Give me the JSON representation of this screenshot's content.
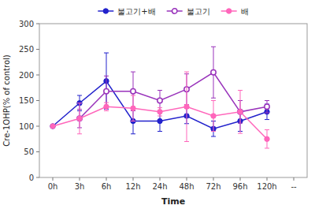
{
  "chart_data": {
    "type": "line",
    "xlabel": "Time",
    "ylabel": "Cre-1OHP(% of control)",
    "categories": [
      "0h",
      "3h",
      "6h",
      "12h",
      "24h",
      "48h",
      "72h",
      "96h",
      "120h",
      "--"
    ],
    "series": [
      {
        "name": "불고기+배",
        "color": "#2222cc",
        "marker": "circle",
        "values": [
          100,
          145,
          188,
          110,
          110,
          120,
          95,
          110,
          128,
          null
        ],
        "errors": [
          0,
          15,
          55,
          25,
          20,
          15,
          15,
          20,
          15,
          null
        ]
      },
      {
        "name": "불고기",
        "color": "#9933bb",
        "marker": "open-circle",
        "values": [
          null,
          115,
          168,
          168,
          150,
          172,
          205,
          128,
          138,
          null
        ],
        "errors": [
          null,
          18,
          30,
          38,
          20,
          30,
          50,
          22,
          12,
          null
        ]
      },
      {
        "name": "배",
        "color": "#ff66bb",
        "marker": "circle",
        "values": [
          100,
          115,
          138,
          135,
          128,
          138,
          120,
          128,
          75,
          null
        ],
        "errors": [
          0,
          30,
          8,
          25,
          8,
          68,
          30,
          42,
          18,
          null
        ]
      }
    ],
    "ylim": [
      0,
      300
    ],
    "yticks": [
      0,
      50,
      100,
      150,
      200,
      250,
      300
    ],
    "grid": false,
    "legend": "top"
  }
}
